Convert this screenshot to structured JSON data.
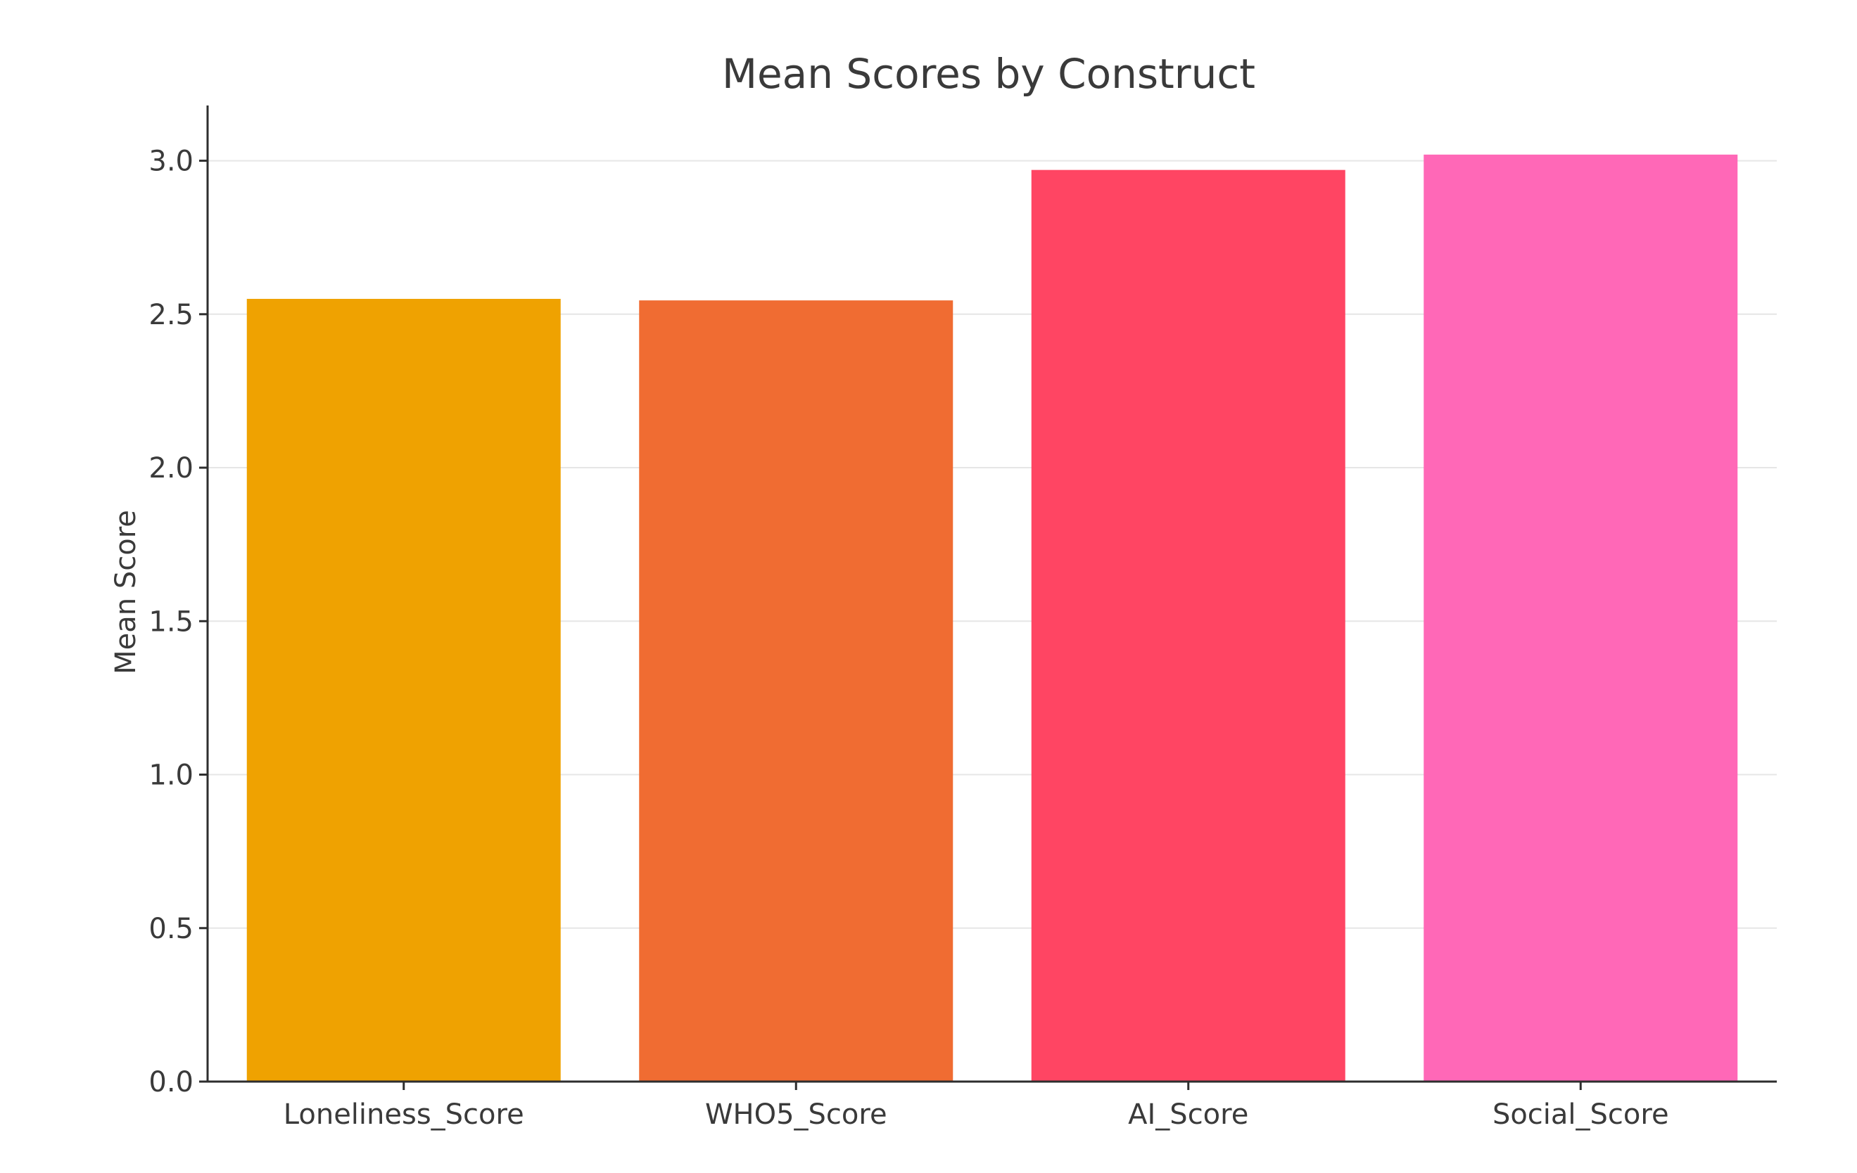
{
  "chart_data": {
    "type": "bar",
    "title": "Mean Scores by Construct",
    "xlabel": "",
    "ylabel": "Mean Score",
    "categories": [
      "Loneliness_Score",
      "WHO5_Score",
      "AI_Score",
      "Social_Score"
    ],
    "values": [
      2.55,
      2.545,
      2.97,
      3.02
    ],
    "colors": [
      "#EFA201",
      "#F06C32",
      "#FF4563",
      "#FF68B7"
    ],
    "ylim": [
      0,
      3.18
    ],
    "yticks": [
      "0.0",
      "0.5",
      "1.0",
      "1.5",
      "2.0",
      "2.5",
      "3.0"
    ],
    "grid": "horizontal",
    "legend": "none"
  }
}
